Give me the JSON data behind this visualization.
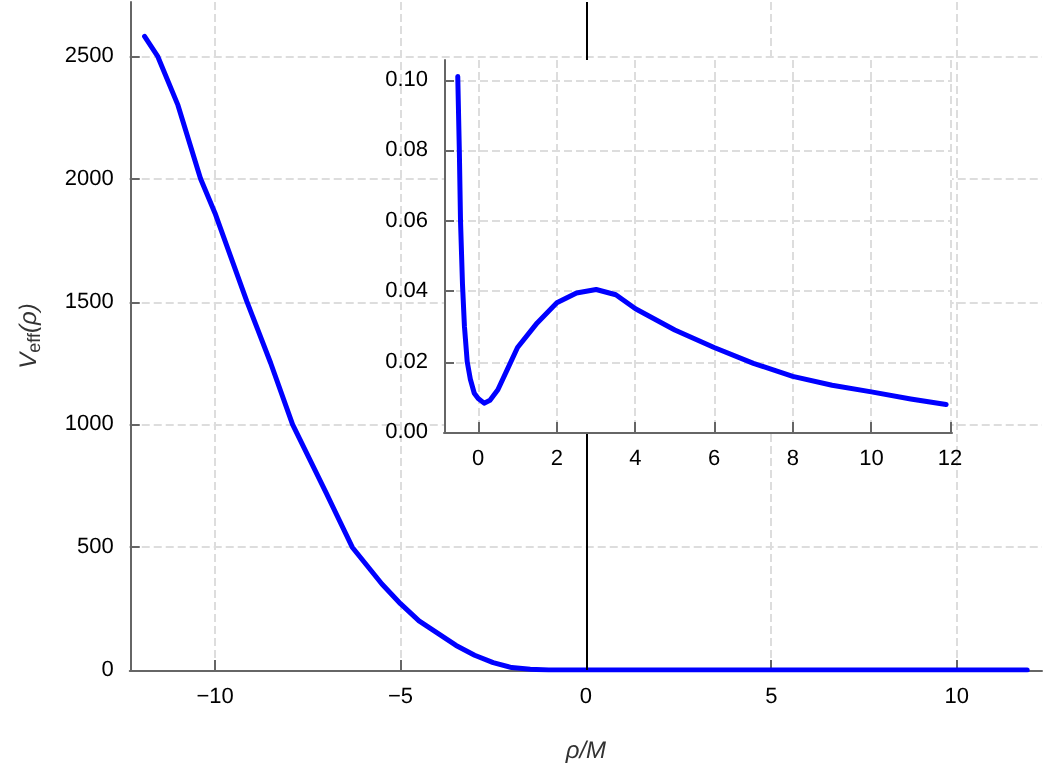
{
  "chart_data": [
    {
      "type": "line",
      "xlabel": "ρ/M",
      "ylabel": "V$_{eff}$(ρ)",
      "x": [
        -11.9,
        -11.55,
        -11,
        -10.39,
        -10,
        -9.14,
        -8.5,
        -7.91,
        -7,
        -6.3,
        -5.5,
        -5,
        -4.5,
        -4,
        -3.5,
        -3,
        -2.5,
        -2,
        -1.5,
        -1,
        0,
        2,
        4,
        6,
        8,
        10,
        11.9
      ],
      "series": [
        {
          "color": "#0000ff",
          "values": [
            2580,
            2500,
            2300,
            2000,
            1860,
            1500,
            1250,
            1000,
            720,
            500,
            350,
            270,
            200,
            150,
            100,
            60,
            30,
            10,
            3,
            0,
            0,
            0,
            0,
            0,
            0,
            0,
            0
          ]
        }
      ],
      "xlim": [
        -12.3,
        12.3
      ],
      "xticks": [
        {
          "value": -10,
          "label": "−10"
        },
        {
          "value": -5,
          "label": "−5"
        },
        0,
        5,
        10
      ],
      "ylim": [
        0,
        2720
      ],
      "yticks": [
        0,
        500,
        1000,
        1500,
        2000,
        2500
      ],
      "ref_lines": [
        {
          "axis": "x",
          "value": 0,
          "color": "#000000"
        }
      ],
      "grid": true,
      "line_style": "solid",
      "marker": "none"
    },
    {
      "type": "line",
      "x": [
        -0.52,
        -0.48,
        -0.45,
        -0.4,
        -0.35,
        -0.28,
        -0.2,
        -0.1,
        0,
        0.15,
        0.3,
        0.5,
        0.75,
        1,
        1.5,
        2,
        2.5,
        3,
        3.5,
        4,
        5,
        6,
        7,
        8,
        9,
        10,
        11,
        11.9
      ],
      "series": [
        {
          "color": "#0000ff",
          "values": [
            0.101,
            0.08,
            0.06,
            0.042,
            0.03,
            0.02,
            0.015,
            0.011,
            0.0095,
            0.0082,
            0.009,
            0.012,
            0.018,
            0.024,
            0.031,
            0.0367,
            0.0395,
            0.0405,
            0.039,
            0.035,
            0.029,
            0.024,
            0.0195,
            0.0158,
            0.0133,
            0.0114,
            0.0094,
            0.0078
          ]
        }
      ],
      "xlim": [
        -0.87,
        12.05
      ],
      "xticks": [
        0,
        2,
        4,
        6,
        8,
        10,
        12
      ],
      "ylim": [
        0,
        0.1057
      ],
      "yticks": [
        {
          "value": 0,
          "label": "0.00"
        },
        {
          "value": 0.02,
          "label": "0.02"
        },
        {
          "value": 0.04,
          "label": "0.04"
        },
        {
          "value": 0.06,
          "label": "0.06"
        },
        {
          "value": 0.08,
          "label": "0.08"
        },
        {
          "value": 0.1,
          "label": "0.10"
        }
      ],
      "grid": true,
      "line_style": "solid",
      "marker": "none"
    }
  ]
}
